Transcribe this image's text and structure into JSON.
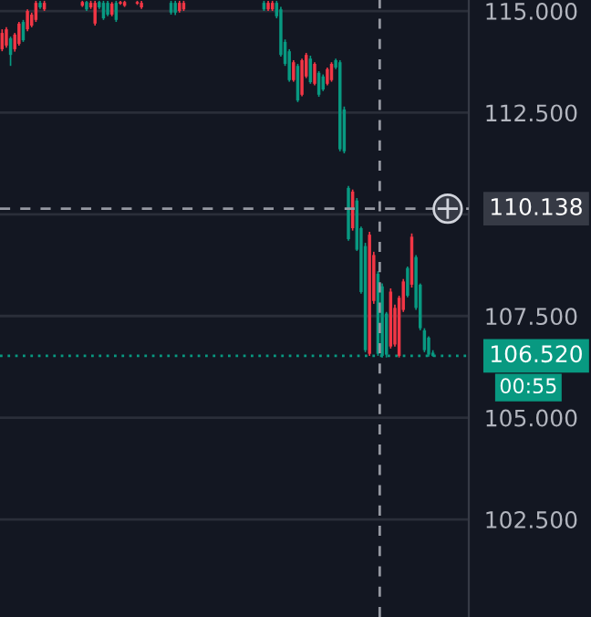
{
  "chart_data": {
    "type": "candlestick",
    "categories": [
      null,
      null,
      null,
      null,
      null,
      null,
      null,
      null,
      null,
      null,
      null,
      null,
      null,
      null,
      null,
      null,
      null,
      null,
      null,
      null,
      null,
      null,
      null,
      null,
      null,
      null,
      null,
      null,
      null,
      null,
      null,
      null,
      null,
      null,
      null,
      null,
      null,
      null,
      null,
      null,
      null,
      null,
      null,
      null,
      null,
      null,
      null,
      null,
      null,
      null,
      null,
      null,
      null,
      null,
      null,
      null,
      null,
      null,
      null,
      null,
      null,
      null,
      null,
      null,
      null,
      null,
      null,
      null,
      null,
      null,
      null,
      null,
      null,
      null,
      null,
      null,
      null,
      null,
      null,
      null,
      null,
      null,
      null,
      null,
      null,
      null,
      null,
      null,
      null,
      null,
      null,
      null,
      null,
      null,
      null,
      null,
      null,
      null,
      null,
      null,
      null,
      null,
      null,
      null,
      null,
      null,
      null,
      null,
      null,
      null,
      null
    ],
    "ohlc": [
      [
        114.06,
        114.55,
        114.01,
        114.46
      ],
      [
        114.15,
        114.6,
        114.1,
        114.55
      ],
      [
        114.33,
        114.37,
        113.65,
        113.92
      ],
      [
        114.06,
        114.46,
        114.0,
        114.42
      ],
      [
        114.19,
        114.73,
        114.15,
        114.69
      ],
      [
        114.73,
        114.78,
        114.24,
        114.28
      ],
      [
        114.55,
        115.04,
        114.5,
        115.0
      ],
      [
        114.64,
        114.96,
        114.6,
        114.91
      ],
      [
        114.78,
        115.25,
        114.73,
        115.2
      ],
      [
        115.2,
        115.25,
        115.05,
        115.09
      ],
      [
        115.04,
        115.25,
        115.0,
        115.2
      ],
      null,
      null,
      null,
      null,
      null,
      null,
      null,
      null,
      [
        115.13,
        115.25,
        115.1,
        115.22
      ],
      [
        115.22,
        115.25,
        115.0,
        115.04
      ],
      [
        115.09,
        115.25,
        115.05,
        115.2
      ],
      [
        114.69,
        115.25,
        114.64,
        115.2
      ],
      [
        115.22,
        115.25,
        115.05,
        115.09
      ],
      [
        115.2,
        115.25,
        114.78,
        114.82
      ],
      [
        115.2,
        115.25,
        114.87,
        114.91
      ],
      [
        114.91,
        115.22,
        114.87,
        115.18
      ],
      [
        115.2,
        115.25,
        114.73,
        114.78
      ],
      [
        115.18,
        115.25,
        115.15,
        115.22
      ],
      [
        115.13,
        115.25,
        115.1,
        115.22
      ],
      null,
      null,
      [
        115.18,
        115.25,
        115.15,
        115.22
      ],
      [
        115.09,
        115.25,
        115.05,
        115.2
      ],
      null,
      null,
      null,
      null,
      null,
      null,
      [
        115.2,
        115.25,
        114.91,
        114.96
      ],
      [
        115.2,
        115.25,
        114.9,
        114.96
      ],
      [
        115.0,
        115.25,
        114.96,
        115.2
      ],
      [
        115.04,
        115.25,
        115.0,
        115.2
      ],
      null,
      null,
      null,
      null,
      null,
      null,
      null,
      null,
      null,
      null,
      null,
      null,
      null,
      null,
      null,
      null,
      null,
      null,
      [
        115.2,
        115.25,
        115.0,
        115.04
      ],
      [
        115.04,
        115.25,
        115.0,
        115.2
      ],
      [
        115.04,
        115.25,
        115.0,
        115.2
      ],
      [
        115.2,
        115.25,
        114.82,
        114.87
      ],
      [
        115.04,
        115.1,
        113.88,
        113.92
      ],
      [
        114.24,
        114.3,
        113.65,
        113.7
      ],
      [
        114.01,
        114.06,
        113.26,
        113.3
      ],
      [
        113.3,
        113.79,
        113.26,
        113.74
      ],
      [
        113.65,
        113.7,
        112.76,
        112.8
      ],
      [
        112.94,
        113.83,
        112.9,
        113.79
      ],
      [
        113.39,
        113.97,
        113.35,
        113.92
      ],
      [
        113.83,
        113.9,
        113.21,
        113.25
      ],
      [
        113.21,
        113.74,
        113.17,
        113.7
      ],
      [
        113.48,
        113.52,
        112.89,
        112.94
      ],
      [
        113.39,
        113.44,
        113.03,
        113.07
      ],
      [
        113.21,
        113.61,
        113.17,
        113.57
      ],
      [
        113.3,
        113.74,
        113.26,
        113.7
      ],
      [
        113.79,
        113.83,
        113.57,
        113.61
      ],
      [
        113.74,
        113.79,
        111.55,
        111.6
      ],
      [
        112.58,
        112.65,
        111.5,
        111.55
      ],
      [
        110.65,
        110.7,
        109.35,
        109.39
      ],
      [
        109.66,
        110.61,
        109.6,
        110.56
      ],
      [
        110.34,
        110.4,
        109.1,
        109.13
      ],
      [
        109.66,
        109.7,
        108.05,
        108.09
      ],
      [
        109.22,
        109.3,
        106.61,
        106.66
      ],
      [
        106.57,
        109.57,
        106.52,
        109.5
      ],
      [
        107.87,
        109.08,
        107.8,
        109.0
      ],
      [
        108.54,
        108.6,
        106.52,
        106.57
      ],
      [
        108.23,
        108.3,
        106.48,
        106.52
      ],
      [
        107.56,
        107.6,
        106.48,
        106.55
      ],
      [
        106.75,
        108.18,
        106.7,
        108.1
      ],
      [
        106.8,
        107.78,
        106.75,
        107.7
      ],
      [
        106.52,
        108.0,
        106.48,
        107.95
      ],
      [
        107.65,
        108.41,
        107.6,
        108.35
      ],
      [
        108.68,
        108.72,
        107.96,
        108.0
      ],
      [
        108.27,
        109.53,
        108.2,
        109.45
      ],
      [
        108.95,
        109.0,
        107.65,
        107.7
      ],
      [
        108.27,
        108.3,
        107.15,
        107.2
      ],
      [
        107.15,
        107.2,
        106.61,
        106.66
      ],
      [
        106.97,
        107.0,
        106.5,
        106.55
      ],
      [
        106.6,
        106.66,
        106.5,
        106.52
      ],
      null,
      null,
      null,
      null,
      null,
      null,
      null,
      null
    ],
    "colors": [
      "#f23645",
      "#f23645",
      "#089981",
      "#f23645",
      "#f23645",
      "#089981",
      "#f23645",
      "#f23645",
      "#f23645",
      "#089981",
      "#f23645",
      null,
      null,
      null,
      null,
      null,
      null,
      null,
      null,
      "#f23645",
      "#089981",
      "#f23645",
      "#f23645",
      "#089981",
      "#089981",
      "#089981",
      "#f23645",
      "#089981",
      "#f23645",
      "#f23645",
      null,
      null,
      "#f23645",
      "#f23645",
      null,
      null,
      null,
      null,
      null,
      null,
      "#089981",
      "#089981",
      "#f23645",
      "#f23645",
      null,
      null,
      null,
      null,
      null,
      null,
      null,
      null,
      null,
      null,
      null,
      null,
      null,
      null,
      null,
      null,
      null,
      null,
      "#089981",
      "#f23645",
      "#f23645",
      "#089981",
      "#089981",
      "#089981",
      "#089981",
      "#f23645",
      "#089981",
      "#f23645",
      "#f23645",
      "#089981",
      "#f23645",
      "#089981",
      "#089981",
      "#f23645",
      "#f23645",
      "#089981",
      "#089981",
      "#089981",
      "#089981",
      "#f23645",
      "#089981",
      "#089981",
      "#089981",
      "#f23645",
      "#f23645",
      "#089981",
      "#089981",
      "#089981",
      "#f23645",
      "#f23645",
      "#f23645",
      "#f23645",
      "#089981",
      "#f23645",
      "#089981",
      "#089981",
      "#089981",
      "#089981",
      "#089981",
      null,
      null,
      null,
      null,
      null,
      null,
      null,
      null
    ],
    "ylim": [
      100.1,
      115.27
    ],
    "yticks": [
      {
        "value": 102.5,
        "label": "102.500"
      },
      {
        "value": 105,
        "label": "105.000"
      },
      {
        "value": 107.5,
        "label": "107.500"
      },
      {
        "value": 110,
        "label": null
      },
      {
        "value": 112.5,
        "label": "112.500"
      },
      {
        "value": 115,
        "label": "115.000"
      }
    ],
    "grid": "y",
    "tick_labels": "y",
    "ref_lines": [
      {
        "axis": "y",
        "value": 110.138,
        "label": "110.138",
        "color": "#9598a1",
        "line_style": "dashed"
      },
      {
        "axis": "y",
        "value": 106.52,
        "label": "106.520",
        "color": "#089981",
        "line_style": "dotted"
      }
    ],
    "annotations": [
      "00:55"
    ]
  }
}
